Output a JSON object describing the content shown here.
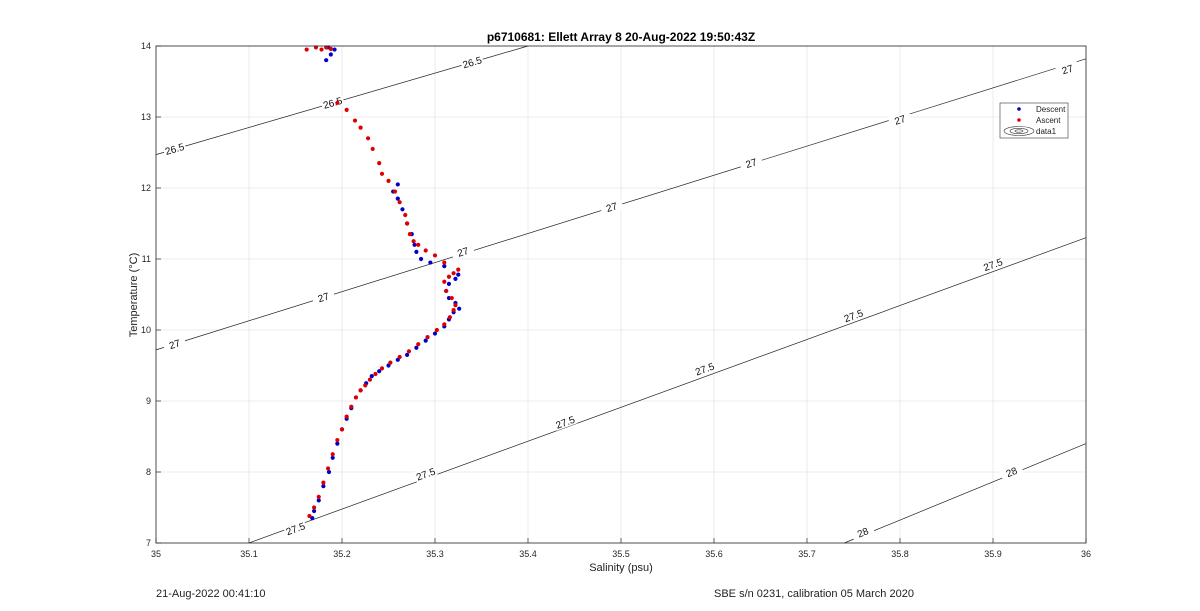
{
  "chart_data": {
    "type": "scatter",
    "title": "p6710681: Ellett Array 8 20-Aug-2022 19:50:43Z",
    "xlabel": "Salinity (psu)",
    "ylabel": "Temperature (°C)",
    "xlim": [
      35.0,
      36.0
    ],
    "ylim": [
      7,
      14
    ],
    "xticks": [
      "35",
      "35.1",
      "35.2",
      "35.3",
      "35.4",
      "35.5",
      "35.6",
      "35.7",
      "35.8",
      "35.9",
      "36"
    ],
    "yticks": [
      "7",
      "8",
      "9",
      "10",
      "11",
      "12",
      "13",
      "14"
    ],
    "grid": true,
    "legend_position": "top-right",
    "legend": [
      "Descent",
      "Ascent",
      "data1"
    ],
    "series": [
      {
        "name": "Descent",
        "color": "#0000cc",
        "x": [
          35.168,
          35.17,
          35.175,
          35.18,
          35.186,
          35.19,
          35.195,
          35.2,
          35.205,
          35.21,
          35.215,
          35.22,
          35.226,
          35.232,
          35.24,
          35.25,
          35.26,
          35.27,
          35.28,
          35.29,
          35.3,
          35.31,
          35.315,
          35.32,
          35.326,
          35.322,
          35.315,
          35.312,
          35.315,
          35.322,
          35.325,
          35.31,
          35.295,
          35.285,
          35.28,
          35.278,
          35.275,
          35.27,
          35.265,
          35.26,
          35.255,
          35.26,
          35.183,
          35.188,
          35.192,
          35.185
        ],
        "y": [
          7.35,
          7.45,
          7.6,
          7.8,
          8.0,
          8.2,
          8.4,
          8.6,
          8.75,
          8.9,
          9.05,
          9.15,
          9.25,
          9.35,
          9.42,
          9.5,
          9.58,
          9.65,
          9.75,
          9.85,
          9.95,
          10.05,
          10.15,
          10.25,
          10.3,
          10.38,
          10.45,
          10.55,
          10.65,
          10.72,
          10.78,
          10.9,
          10.95,
          11.0,
          11.1,
          11.2,
          11.35,
          11.5,
          11.7,
          11.85,
          11.95,
          12.05,
          13.8,
          13.88,
          13.95,
          13.98
        ]
      },
      {
        "name": "Ascent",
        "color": "#dd0000",
        "x": [
          35.165,
          35.17,
          35.175,
          35.18,
          35.185,
          35.19,
          35.195,
          35.2,
          35.205,
          35.21,
          35.215,
          35.22,
          35.225,
          35.23,
          35.236,
          35.243,
          35.252,
          35.262,
          35.272,
          35.282,
          35.292,
          35.302,
          35.31,
          35.316,
          35.32,
          35.322,
          35.318,
          35.312,
          35.31,
          35.315,
          35.32,
          35.325,
          35.31,
          35.3,
          35.29,
          35.282,
          35.277,
          35.273,
          35.27,
          35.268,
          35.262,
          35.257,
          35.25,
          35.243,
          35.24,
          35.233,
          35.228,
          35.22,
          35.214,
          35.205,
          35.195,
          35.162,
          35.172,
          35.178,
          35.183,
          35.188
        ],
        "y": [
          7.38,
          7.5,
          7.65,
          7.85,
          8.05,
          8.25,
          8.45,
          8.6,
          8.78,
          8.92,
          9.05,
          9.15,
          9.22,
          9.3,
          9.38,
          9.46,
          9.54,
          9.62,
          9.7,
          9.8,
          9.9,
          10.0,
          10.08,
          10.18,
          10.28,
          10.35,
          10.45,
          10.55,
          10.68,
          10.75,
          10.8,
          10.85,
          10.95,
          11.05,
          11.12,
          11.2,
          11.25,
          11.35,
          11.5,
          11.62,
          11.8,
          11.95,
          12.1,
          12.2,
          12.35,
          12.55,
          12.7,
          12.85,
          12.95,
          13.1,
          13.2,
          13.95,
          13.98,
          13.95,
          13.98,
          13.96
        ]
      }
    ],
    "contours": [
      {
        "label": "26.5",
        "x": [
          35.0,
          35.4
        ],
        "y": [
          12.47,
          14.0
        ],
        "label_pos": [
          [
            35.02,
            12.55
          ],
          [
            35.19,
            13.2
          ],
          [
            35.34,
            13.77
          ]
        ]
      },
      {
        "label": "27",
        "x": [
          35.0,
          36.0
        ],
        "y": [
          9.72,
          13.82
        ],
        "label_pos": [
          [
            35.02,
            9.8
          ],
          [
            35.18,
            10.46
          ],
          [
            35.33,
            11.1
          ],
          [
            35.49,
            11.73
          ],
          [
            35.64,
            12.35
          ],
          [
            35.8,
            12.96
          ],
          [
            35.98,
            13.67
          ]
        ]
      },
      {
        "label": "27.5",
        "x": [
          35.1,
          36.0
        ],
        "y": [
          7.0,
          11.3
        ],
        "label_pos": [
          [
            35.15,
            7.2
          ],
          [
            35.29,
            7.97
          ],
          [
            35.44,
            8.7
          ],
          [
            35.59,
            9.45
          ],
          [
            35.75,
            10.2
          ],
          [
            35.9,
            10.92
          ]
        ]
      },
      {
        "label": "28",
        "x": [
          35.74,
          36.0
        ],
        "y": [
          7.0,
          8.4
        ],
        "label_pos": [
          [
            35.76,
            7.15
          ],
          [
            35.92,
            8.0
          ]
        ]
      }
    ]
  },
  "footer": {
    "left": "21-Aug-2022 00:41:10",
    "right": "SBE s/n 0231, calibration 05 March 2020"
  }
}
